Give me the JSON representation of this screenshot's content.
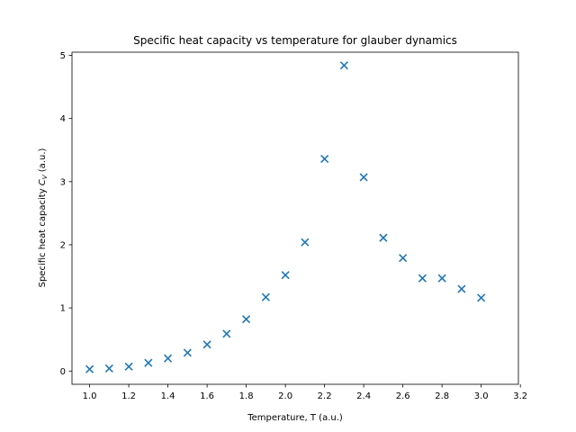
{
  "chart_data": {
    "type": "scatter",
    "title": "Specific heat capacity vs temperature for glauber dynamics",
    "xlabel": "Temperature, T (a.u.)",
    "ylabel_prefix": "Specific heat capacity ",
    "ylabel_symbol": "C",
    "ylabel_subscript": "V",
    "ylabel_suffix": " (a.u.)",
    "xlim": [
      0.91,
      3.19
    ],
    "ylim": [
      -0.21,
      5.05
    ],
    "xticks": [
      "1.0",
      "1.2",
      "1.4",
      "1.6",
      "1.8",
      "2.0",
      "2.2",
      "2.4",
      "2.6",
      "2.8",
      "3.0",
      "3.2"
    ],
    "yticks": [
      "0",
      "1",
      "2",
      "3",
      "4",
      "5"
    ],
    "marker": "x",
    "color": "#1f77b4",
    "grid": false,
    "series": [
      {
        "x": [
          1.0,
          1.1,
          1.2,
          1.3,
          1.4,
          1.5,
          1.6,
          1.7,
          1.8,
          1.9,
          2.0,
          2.1,
          2.2,
          2.3,
          2.4,
          2.5,
          2.6,
          2.7,
          2.8,
          2.9,
          3.0
        ],
        "y": [
          0.03,
          0.04,
          0.07,
          0.13,
          0.2,
          0.29,
          0.42,
          0.59,
          0.82,
          1.17,
          1.52,
          2.04,
          3.36,
          4.84,
          3.07,
          2.11,
          1.79,
          1.47,
          1.47,
          1.3,
          1.16
        ]
      }
    ]
  }
}
